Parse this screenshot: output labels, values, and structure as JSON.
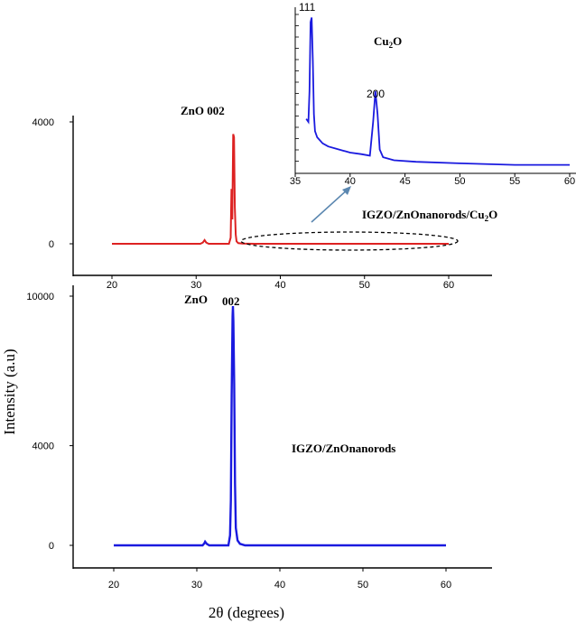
{
  "chart_data": [
    {
      "id": "top",
      "type": "line",
      "title": "",
      "xlabel": "",
      "ylabel": "",
      "xlim": [
        20,
        60
      ],
      "ylim": [
        0,
        4000
      ],
      "xticks": [
        "20",
        "30",
        "40",
        "50",
        "60"
      ],
      "yticks": [
        "0",
        "4000"
      ],
      "color": "#dd2222",
      "annotations": {
        "peak_label": "ZnO  002",
        "sample": "IGZO/ZnOnanorods/Cu",
        "sample_sub": "2",
        "sample_tail": "O"
      },
      "series": [
        {
          "x": [
            20,
            30.5,
            30.8,
            31.0,
            31.2,
            31.5,
            33.9,
            34.1,
            34.2,
            34.3,
            34.4,
            34.5,
            34.6,
            34.7,
            34.8,
            35.0,
            35.5,
            37,
            40,
            50,
            60
          ],
          "values": [
            0,
            0,
            40,
            120,
            40,
            0,
            0,
            200,
            1800,
            800,
            3600,
            3500,
            1200,
            300,
            80,
            20,
            5,
            0,
            0,
            0,
            0
          ]
        }
      ]
    },
    {
      "id": "inset",
      "type": "line",
      "title": "Cu2O",
      "title_main": "Cu",
      "title_sub": "2",
      "title_tail": "O",
      "xlabel": "",
      "ylabel": "",
      "xlim": [
        35,
        60
      ],
      "ylim": [
        0,
        100
      ],
      "xticks": [
        "35",
        "40",
        "45",
        "50",
        "55",
        "60"
      ],
      "color": "#1a1adf",
      "annotations": {
        "peak1": "111",
        "peak2": "200"
      },
      "series": [
        {
          "x": [
            36.0,
            36.2,
            36.3,
            36.4,
            36.5,
            36.6,
            36.7,
            36.8,
            37.0,
            37.5,
            38.0,
            39.0,
            40.0,
            41.0,
            41.8,
            42.1,
            42.3,
            42.5,
            42.7,
            43.0,
            44.0,
            46.0,
            50.0,
            55.0,
            60.0
          ],
          "values": [
            32,
            30,
            50,
            95,
            98,
            70,
            35,
            24,
            20,
            16,
            14,
            12,
            10,
            9,
            8,
            30,
            50,
            35,
            12,
            7,
            5,
            4,
            3,
            2,
            2
          ]
        }
      ]
    },
    {
      "id": "bottom",
      "type": "line",
      "title": "",
      "xlabel": "2θ (degrees)",
      "ylabel": "Intensity (a.u)",
      "xlim": [
        20,
        60
      ],
      "ylim": [
        0,
        10000
      ],
      "xticks": [
        "20",
        "30",
        "40",
        "50",
        "60"
      ],
      "yticks": [
        "0",
        "4000",
        "10000"
      ],
      "color": "#1a1adf",
      "annotations": {
        "peak_label_a": "ZnO",
        "peak_label_b": "002",
        "sample": "IGZO/ZnOnanorods"
      },
      "series": [
        {
          "x": [
            20,
            30.7,
            30.9,
            31.0,
            31.2,
            31.5,
            33.8,
            34.0,
            34.1,
            34.2,
            34.3,
            34.35,
            34.4,
            34.5,
            34.6,
            34.7,
            34.9,
            35.2,
            35.8,
            40,
            50,
            60
          ],
          "values": [
            0,
            0,
            80,
            150,
            60,
            0,
            0,
            400,
            1800,
            6000,
            9200,
            9600,
            9000,
            6500,
            2500,
            700,
            200,
            60,
            0,
            0,
            0,
            0
          ]
        }
      ]
    }
  ]
}
